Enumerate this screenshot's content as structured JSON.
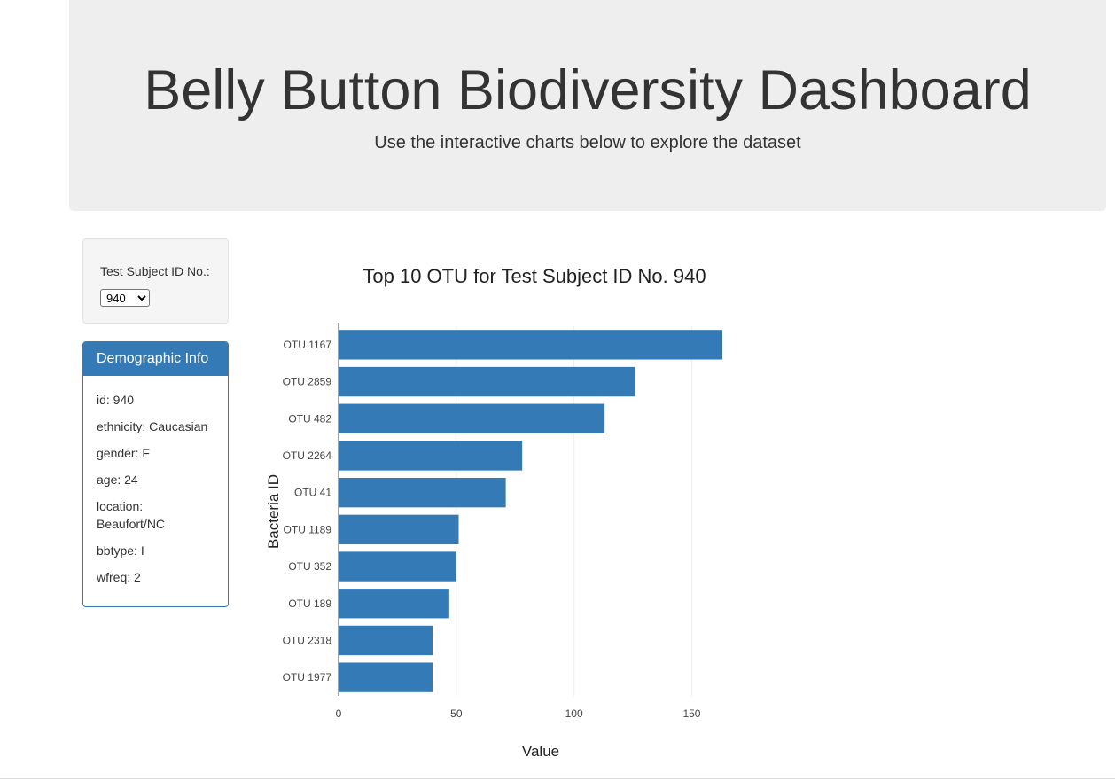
{
  "header": {
    "title": "Belly Button Biodiversity Dashboard",
    "subtitle": "Use the interactive charts below to explore the dataset"
  },
  "selector": {
    "label": "Test Subject ID No.:",
    "selected": "940"
  },
  "demographics": {
    "heading": "Demographic Info",
    "rows": [
      "id: 940",
      "ethnicity: Caucasian",
      "gender: F",
      "age: 24",
      "location: Beaufort/NC",
      "bbtype: I",
      "wfreq: 2"
    ]
  },
  "colors": {
    "bar": "#337ab7",
    "panel_accent": "#337ab7"
  },
  "chart_data": {
    "type": "bar",
    "orientation": "horizontal",
    "title": "Top 10 OTU for Test Subject ID No. 940",
    "xlabel": "Value",
    "ylabel": "Bacteria ID",
    "categories": [
      "OTU 1167",
      "OTU 2859",
      "OTU 482",
      "OTU 2264",
      "OTU 41",
      "OTU 1189",
      "OTU 352",
      "OTU 189",
      "OTU 2318",
      "OTU 1977"
    ],
    "values": [
      163,
      126,
      113,
      78,
      71,
      51,
      50,
      47,
      40,
      40
    ],
    "xlim": [
      0,
      163
    ],
    "xticks": [
      0,
      50,
      100,
      150
    ],
    "grid": true
  }
}
